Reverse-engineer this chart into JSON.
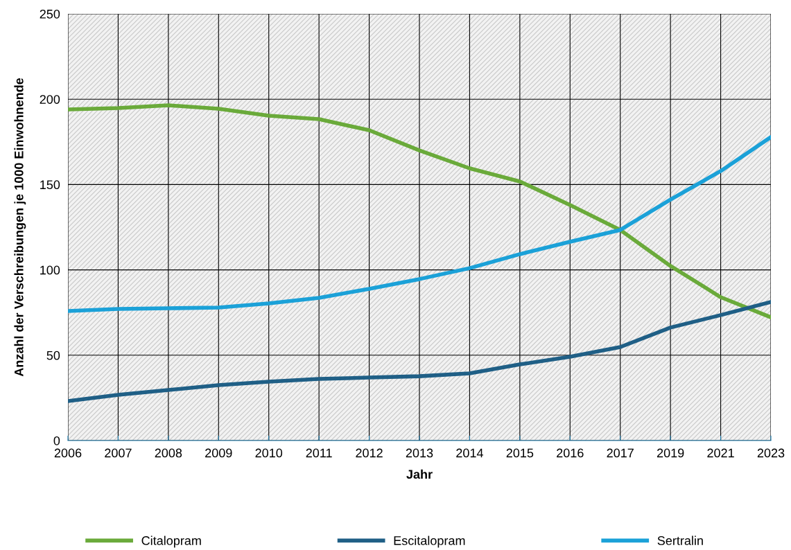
{
  "chart_data": {
    "type": "line",
    "xlabel": "Jahr",
    "ylabel": "Anzahl der Verschreibungen je 1000 Einwohnende",
    "categories": [
      "2006",
      "2007",
      "2008",
      "2009",
      "2010",
      "2011",
      "2012",
      "2013",
      "2014",
      "2015",
      "2016",
      "2017",
      "2019",
      "2021",
      "2023"
    ],
    "series": [
      {
        "name": "Citalopram",
        "color": "#6aaa3a",
        "values": [
          194,
          194.8,
          196.4,
          194.4,
          190.3,
          188.3,
          181.8,
          170,
          159.5,
          151.8,
          138,
          123.4,
          102.3,
          84,
          72.2
        ]
      },
      {
        "name": "Escitalopram",
        "color": "#1f5f86",
        "values": [
          23.1,
          26.8,
          29.6,
          32.5,
          34.5,
          36.1,
          36.9,
          37.7,
          39.4,
          44.6,
          49.1,
          54.8,
          66.2,
          73.5,
          81.2
        ]
      },
      {
        "name": "Sertralin",
        "color": "#1ba1d8",
        "values": [
          75.9,
          77.1,
          77.5,
          77.9,
          80.4,
          83.6,
          88.9,
          94.6,
          101,
          109.2,
          116.5,
          123.4,
          141.2,
          157.9,
          177.8
        ]
      }
    ],
    "ylim": [
      0,
      250
    ],
    "yticks": [
      0,
      50,
      100,
      150,
      200,
      250
    ],
    "grid": true,
    "legend": "bottom",
    "marker": "none",
    "line_style": "solid"
  }
}
